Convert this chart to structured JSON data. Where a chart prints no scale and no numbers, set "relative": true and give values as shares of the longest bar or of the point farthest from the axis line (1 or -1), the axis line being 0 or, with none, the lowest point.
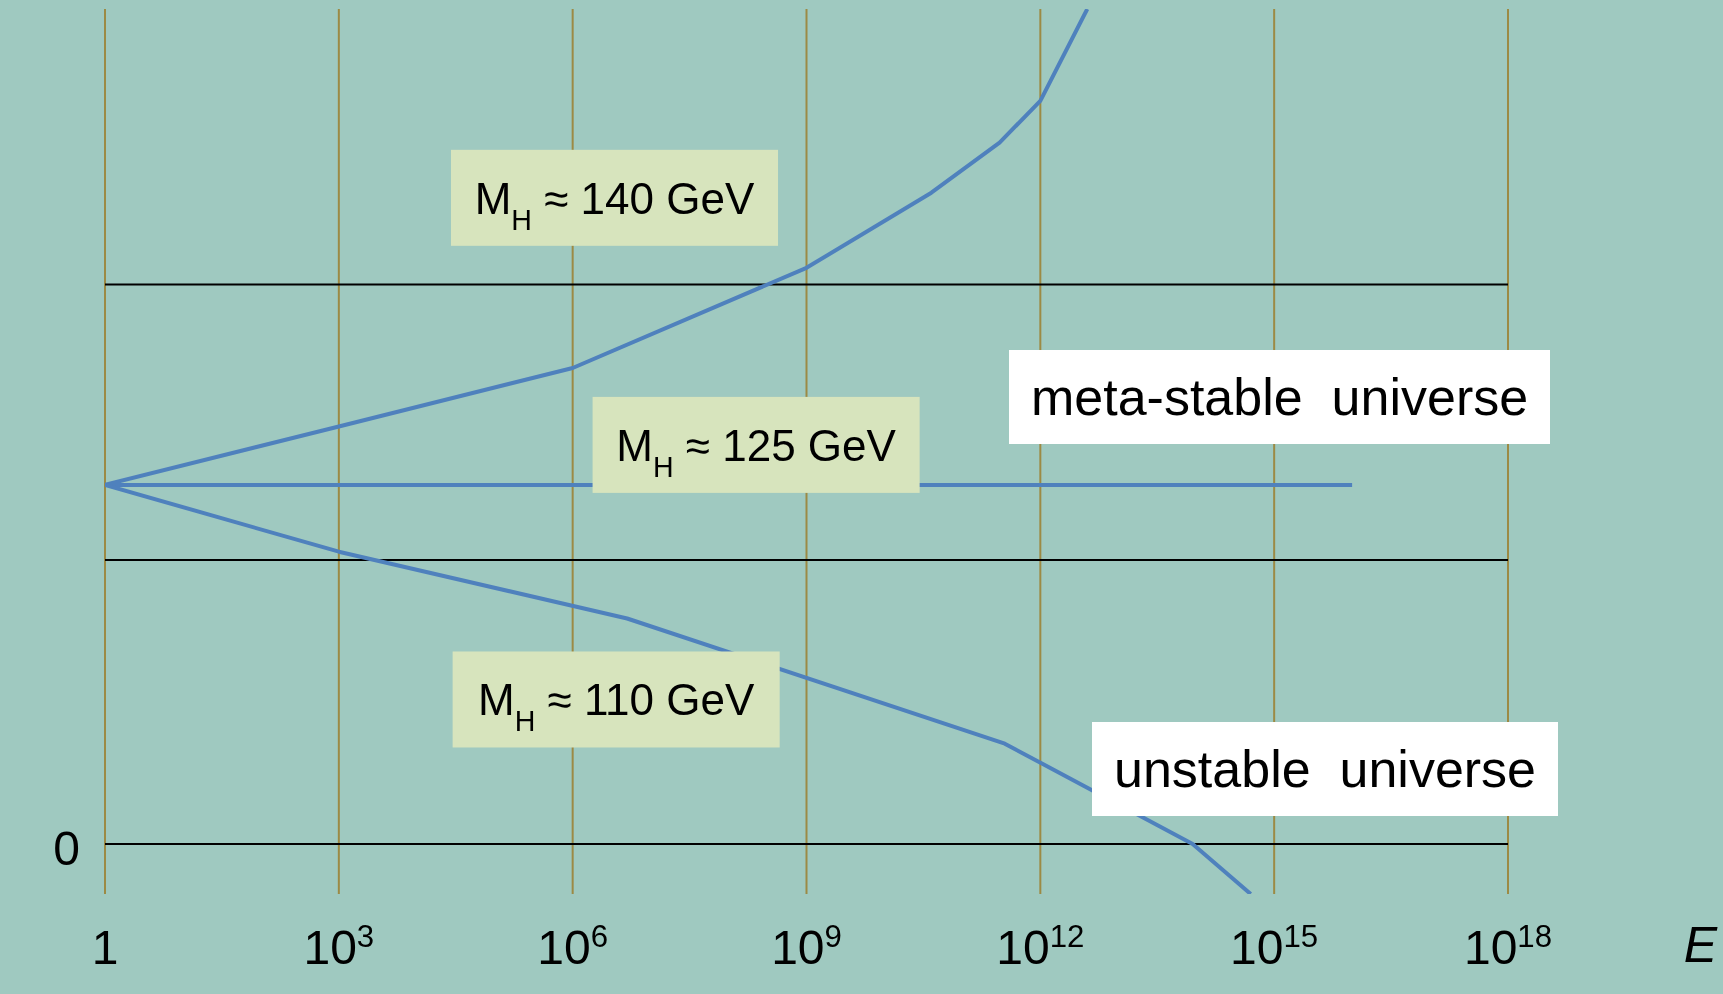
{
  "chart_data": {
    "type": "line",
    "relative": true,
    "log": "x",
    "xlabel": "E",
    "xlim": [
      1,
      1e+18
    ],
    "xticks": [
      1,
      {
        "value": 1000.0,
        "label": "10$^{3}$"
      },
      {
        "value": 1000000.0,
        "label": "10$^{6}$"
      },
      {
        "value": 1000000000.0,
        "label": "10$^{9}$"
      },
      {
        "value": 1000000000000.0,
        "label": "10$^{12}$"
      },
      {
        "value": 1000000000000000.0,
        "label": "10$^{15}$"
      },
      {
        "value": 1e+18,
        "label": "10$^{18}$"
      }
    ],
    "grid": "x",
    "marker": "none",
    "line_style": "solid",
    "series": [
      {
        "name": "M$_{H}$ ≈ 140 GeV",
        "color": "#4f81bd",
        "x": [
          1,
          1000.0,
          1000000.0,
          1000000000.0,
          40000000000.0,
          300000000000.0,
          1000000000000.0,
          4000000000000.0
        ],
        "values": [
          0.43,
          0.5,
          0.57,
          0.69,
          0.78,
          0.84,
          0.89,
          1.0
        ]
      },
      {
        "name": "M$_{H}$ ≈ 125 GeV",
        "color": "#4f81bd",
        "x": [
          1,
          1e+16
        ],
        "values": [
          0.43,
          0.43
        ]
      },
      {
        "name": "M$_{H}$ ≈ 110 GeV",
        "color": "#4f81bd",
        "x": [
          1,
          1000.0,
          5000000.0,
          350000000000.0,
          90000000000000.0,
          500000000000000.0
        ],
        "values": [
          0.43,
          0.35,
          0.27,
          0.12,
          0.0,
          -0.06
        ]
      }
    ],
    "ref_lines": [
      {
        "axis": "y",
        "value": 0.67,
        "color": "#000000"
      },
      {
        "axis": "y",
        "value": 0.34,
        "color": "#000000"
      }
    ],
    "annotations": [
      "0",
      "meta-stable  universe",
      "unstable  universe"
    ]
  }
}
